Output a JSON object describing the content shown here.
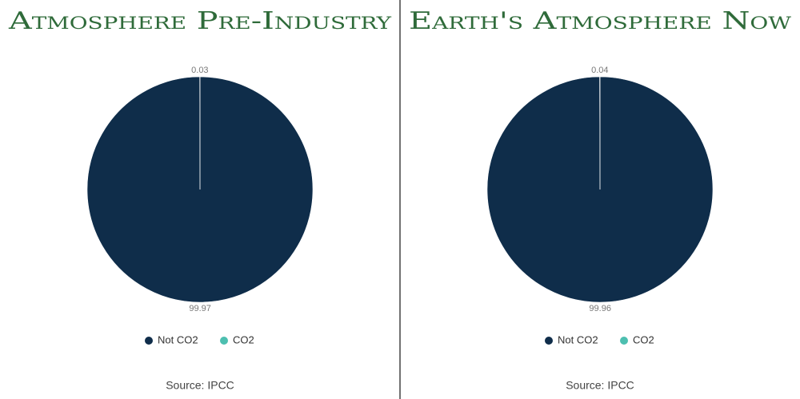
{
  "chart_data": [
    {
      "type": "pie",
      "title": "Atmosphere Pre-Industry",
      "categories": [
        "Not CO2",
        "CO2"
      ],
      "values": [
        99.97,
        0.03
      ],
      "colors": [
        "#0f2d4a",
        "#4dbfb0"
      ],
      "source": "Source: IPCC"
    },
    {
      "type": "pie",
      "title": "Earth's Atmosphere Now",
      "categories": [
        "Not CO2",
        "CO2"
      ],
      "values": [
        99.96,
        0.04
      ],
      "colors": [
        "#0f2d4a",
        "#4dbfb0"
      ],
      "source": "Source: IPCC"
    }
  ]
}
